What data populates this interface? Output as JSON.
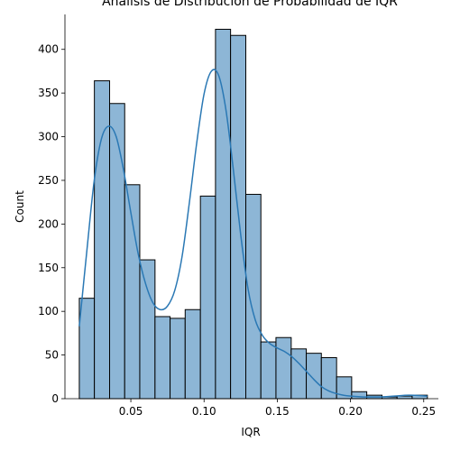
{
  "chart_data": {
    "type": "bar",
    "title": "Análisis de Distribución de Probabilidad de IQR",
    "xlabel": "IQR",
    "ylabel": "Count",
    "xlim": [
      0.005,
      0.26
    ],
    "ylim": [
      0,
      440
    ],
    "xticks": [
      0.05,
      0.1,
      0.15,
      0.2,
      0.25
    ],
    "xtick_labels": [
      "0.05",
      "0.10",
      "0.15",
      "0.20",
      "0.25"
    ],
    "yticks": [
      0,
      50,
      100,
      150,
      200,
      250,
      300,
      350,
      400
    ],
    "ytick_labels": [
      "0",
      "50",
      "100",
      "150",
      "200",
      "250",
      "300",
      "350",
      "400"
    ],
    "grid": false,
    "bin_edges": [
      0.0148,
      0.0251,
      0.0355,
      0.0458,
      0.0561,
      0.0665,
      0.0768,
      0.0871,
      0.0975,
      0.1078,
      0.1181,
      0.1285,
      0.1388,
      0.1491,
      0.1595,
      0.1698,
      0.1801,
      0.1905,
      0.2008,
      0.2111,
      0.2215,
      0.2318,
      0.2421,
      0.2525
    ],
    "values": [
      115,
      364,
      338,
      245,
      159,
      94,
      92,
      102,
      232,
      423,
      416,
      234,
      65,
      70,
      57,
      52,
      47,
      25,
      8,
      4,
      2,
      3,
      4
    ],
    "kde": {
      "x": [
        0.0148,
        0.02,
        0.025,
        0.03,
        0.035,
        0.04,
        0.045,
        0.05,
        0.055,
        0.06,
        0.065,
        0.07,
        0.075,
        0.08,
        0.085,
        0.09,
        0.095,
        0.1,
        0.105,
        0.11,
        0.115,
        0.12,
        0.125,
        0.13,
        0.135,
        0.14,
        0.145,
        0.15,
        0.155,
        0.16,
        0.165,
        0.17,
        0.175,
        0.18,
        0.185,
        0.19,
        0.195,
        0.2,
        0.21,
        0.22,
        0.23,
        0.24,
        0.2525
      ],
      "y": [
        83,
        170,
        250,
        298,
        312,
        300,
        262,
        213,
        166,
        132,
        110,
        102,
        106,
        124,
        163,
        225,
        293,
        349,
        375,
        370,
        330,
        262,
        188,
        126,
        90,
        72,
        63,
        58,
        54,
        48,
        40,
        31,
        22,
        14,
        9,
        6,
        4,
        3,
        2,
        2,
        3,
        4,
        3
      ]
    },
    "bar_color": "#8db6d6",
    "bar_edge_color": "#000000",
    "kde_color": "#2a78b4"
  }
}
